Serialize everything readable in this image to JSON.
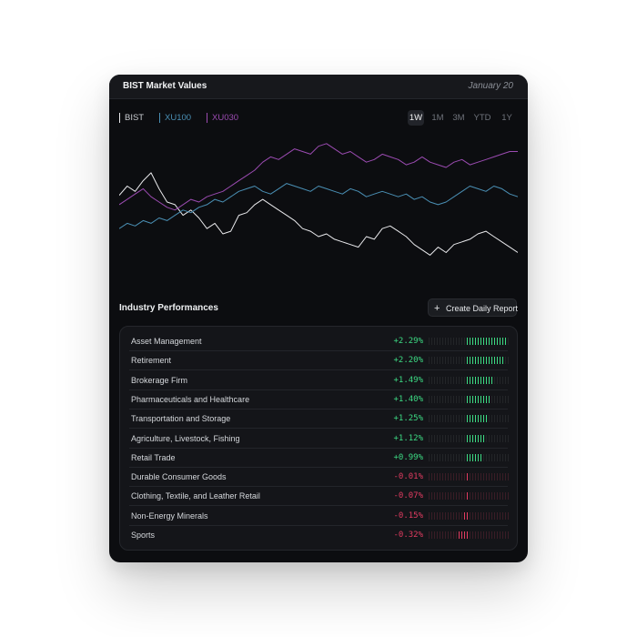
{
  "header": {
    "title": "BIST Market Values",
    "date": "January 20"
  },
  "legend": [
    {
      "label": "BIST",
      "color": "#e9e9ec"
    },
    {
      "label": "XU100",
      "color": "#4a8fb4"
    },
    {
      "label": "XU030",
      "color": "#9b4bb1"
    }
  ],
  "ranges": [
    {
      "label": "1W",
      "active": true
    },
    {
      "label": "1M",
      "active": false
    },
    {
      "label": "3M",
      "active": false
    },
    {
      "label": "YTD",
      "active": false
    },
    {
      "label": "1Y",
      "active": false
    }
  ],
  "chart_data": {
    "type": "line",
    "series": [
      {
        "name": "BIST",
        "color": "#e9e9ec",
        "values": [
          55,
          62,
          58,
          66,
          72,
          60,
          50,
          48,
          40,
          44,
          38,
          30,
          34,
          26,
          28,
          40,
          42,
          48,
          52,
          48,
          44,
          40,
          36,
          30,
          28,
          24,
          26,
          22,
          20,
          18,
          16,
          24,
          22,
          30,
          32,
          28,
          24,
          18,
          14,
          10,
          16,
          12,
          18,
          20,
          22,
          26,
          28,
          24,
          20,
          16,
          12
        ]
      },
      {
        "name": "XU100",
        "color": "#4a8fb4",
        "values": [
          30,
          34,
          32,
          36,
          34,
          38,
          36,
          40,
          44,
          42,
          46,
          48,
          52,
          50,
          54,
          58,
          60,
          62,
          58,
          56,
          60,
          64,
          62,
          60,
          58,
          62,
          60,
          58,
          56,
          60,
          58,
          54,
          56,
          58,
          56,
          54,
          56,
          52,
          54,
          50,
          48,
          50,
          54,
          58,
          62,
          60,
          58,
          62,
          60,
          56,
          54
        ]
      },
      {
        "name": "XU030",
        "color": "#9b4bb1",
        "values": [
          48,
          52,
          56,
          60,
          54,
          50,
          46,
          44,
          48,
          52,
          50,
          54,
          56,
          58,
          62,
          66,
          70,
          74,
          80,
          84,
          82,
          86,
          90,
          88,
          86,
          92,
          94,
          90,
          86,
          88,
          84,
          80,
          82,
          86,
          84,
          82,
          78,
          80,
          84,
          80,
          78,
          76,
          80,
          82,
          78,
          80,
          82,
          84,
          86,
          88,
          88
        ]
      }
    ]
  },
  "section": {
    "title": "Industry Performances",
    "button_label": "Create Daily Report",
    "button_icon": "plus-icon"
  },
  "industries": [
    {
      "name": "Asset Management",
      "change": "+2.29%",
      "value": 2.29,
      "positive": true
    },
    {
      "name": "Retirement",
      "change": "+2.20%",
      "value": 2.2,
      "positive": true
    },
    {
      "name": "Brokerage Firm",
      "change": "+1.49%",
      "value": 1.49,
      "positive": true
    },
    {
      "name": "Pharmaceuticals and Healthcare",
      "change": "+1.40%",
      "value": 1.4,
      "positive": true
    },
    {
      "name": "Transportation and Storage",
      "change": "+1.25%",
      "value": 1.25,
      "positive": true
    },
    {
      "name": "Agriculture, Livestock, Fishing",
      "change": "+1.12%",
      "value": 1.12,
      "positive": true
    },
    {
      "name": "Retail Trade",
      "change": "+0.99%",
      "value": 0.99,
      "positive": true
    },
    {
      "name": "Durable Consumer Goods",
      "change": "-0.01%",
      "value": -0.01,
      "positive": false
    },
    {
      "name": "Clothing, Textile, and Leather Retail",
      "change": "-0.07%",
      "value": -0.07,
      "positive": false
    },
    {
      "name": "Non-Energy Minerals",
      "change": "-0.15%",
      "value": -0.15,
      "positive": false
    },
    {
      "name": "Sports",
      "change": "-0.32%",
      "value": -0.32,
      "positive": false
    }
  ],
  "colors": {
    "positive": "#3ddc84",
    "negative": "#e23c61"
  }
}
